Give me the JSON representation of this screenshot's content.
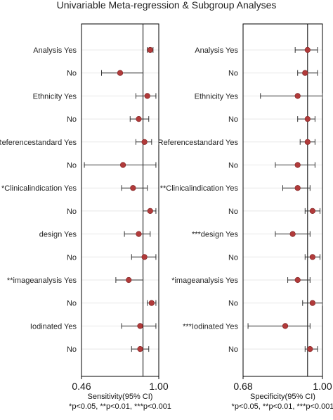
{
  "title": "Univariable Meta-regression & Subgroup Analyses",
  "chart_data": [
    {
      "type": "forest",
      "name": "sensitivity",
      "xlabel": "Sensitivity(95% CI)",
      "xlim": [
        0.46,
        1.0
      ],
      "tick_labels": [
        "0.46",
        "1.00"
      ],
      "reference_line": 0.89,
      "footnote": "*p<0.05, **p<0.01, ***p<0.001",
      "rows": [
        {
          "label": "Analysis Yes",
          "est": 0.94,
          "lo": 0.92,
          "hi": 0.96
        },
        {
          "label": "No",
          "est": 0.73,
          "lo": 0.6,
          "hi": 0.89
        },
        {
          "label": "Ethnicity Yes",
          "est": 0.92,
          "lo": 0.84,
          "hi": 0.98
        },
        {
          "label": "No",
          "est": 0.86,
          "lo": 0.8,
          "hi": 0.93
        },
        {
          "label": "Referencestandard Yes",
          "est": 0.9,
          "lo": 0.84,
          "hi": 0.95
        },
        {
          "label": "No",
          "est": 0.75,
          "lo": 0.48,
          "hi": 0.98
        },
        {
          "label": "*Clinicalindication Yes",
          "est": 0.82,
          "lo": 0.74,
          "hi": 0.92
        },
        {
          "label": "No",
          "est": 0.94,
          "lo": 0.89,
          "hi": 0.98
        },
        {
          "label": "design Yes",
          "est": 0.86,
          "lo": 0.76,
          "hi": 0.94
        },
        {
          "label": "No",
          "est": 0.9,
          "lo": 0.81,
          "hi": 0.98
        },
        {
          "label": "**imageanalysis Yes",
          "est": 0.79,
          "lo": 0.7,
          "hi": 0.89
        },
        {
          "label": "No",
          "est": 0.95,
          "lo": 0.92,
          "hi": 0.98
        },
        {
          "label": "Iodinated Yes",
          "est": 0.87,
          "lo": 0.74,
          "hi": 0.98
        },
        {
          "label": "No",
          "est": 0.87,
          "lo": 0.81,
          "hi": 0.93
        }
      ]
    },
    {
      "type": "forest",
      "name": "specificity",
      "xlabel": "Specificity(95% CI)",
      "xlim": [
        0.68,
        1.0
      ],
      "tick_labels": [
        "0.68",
        "1.00"
      ],
      "reference_line": 0.94,
      "footnote": "*p<0.05, **p<0.01, ***p<0.001",
      "rows": [
        {
          "label": "Analysis Yes",
          "est": 0.94,
          "lo": 0.89,
          "hi": 0.98
        },
        {
          "label": "No",
          "est": 0.93,
          "lo": 0.9,
          "hi": 0.98
        },
        {
          "label": "Ethnicity Yes",
          "est": 0.9,
          "lo": 0.75,
          "hi": 1.0
        },
        {
          "label": "No",
          "est": 0.94,
          "lo": 0.9,
          "hi": 0.97
        },
        {
          "label": "Referencestandard Yes",
          "est": 0.94,
          "lo": 0.91,
          "hi": 0.97
        },
        {
          "label": "No",
          "est": 0.9,
          "lo": 0.81,
          "hi": 0.97
        },
        {
          "label": "**Clinicalindication Yes",
          "est": 0.9,
          "lo": 0.84,
          "hi": 0.95
        },
        {
          "label": "No",
          "est": 0.96,
          "lo": 0.93,
          "hi": 0.99
        },
        {
          "label": "***design Yes",
          "est": 0.88,
          "lo": 0.81,
          "hi": 0.95
        },
        {
          "label": "No",
          "est": 0.96,
          "lo": 0.93,
          "hi": 0.99
        },
        {
          "label": "*imageanalysis Yes",
          "est": 0.9,
          "lo": 0.86,
          "hi": 0.95
        },
        {
          "label": "No",
          "est": 0.96,
          "lo": 0.92,
          "hi": 1.0
        },
        {
          "label": "***Iodinated Yes",
          "est": 0.85,
          "lo": 0.7,
          "hi": 0.95
        },
        {
          "label": "No",
          "est": 0.95,
          "lo": 0.93,
          "hi": 0.98
        }
      ]
    }
  ]
}
